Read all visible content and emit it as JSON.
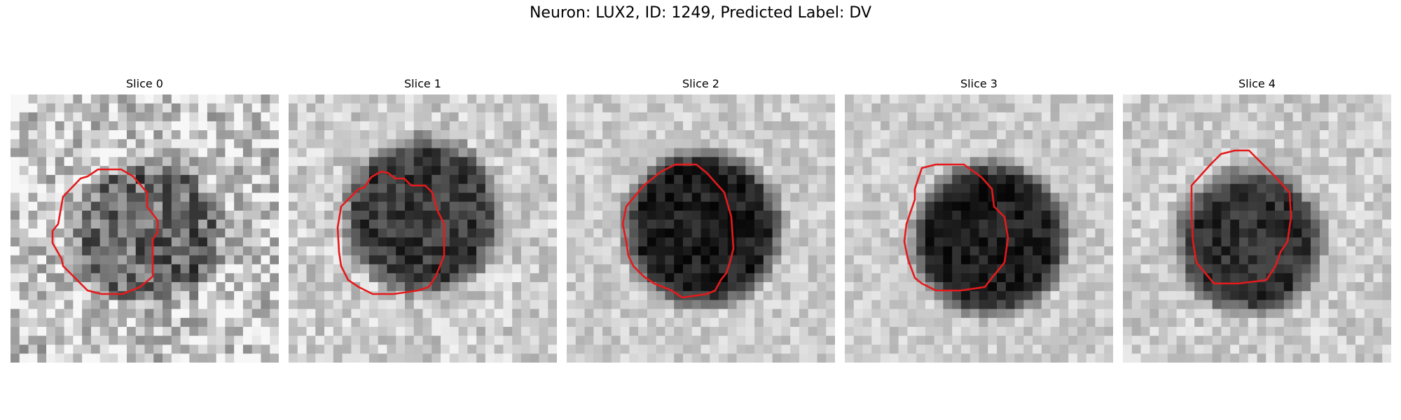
{
  "figure": {
    "suptitle": "Neuron: LUX2, ID: 1249, Predicted Label: DV"
  },
  "panels": [
    {
      "title": "Slice 0"
    },
    {
      "title": "Slice 1"
    },
    {
      "title": "Slice 2"
    },
    {
      "title": "Slice 3"
    },
    {
      "title": "Slice 4"
    }
  ],
  "colors": {
    "contour": "#e41a1c",
    "background": "#ffffff"
  }
}
